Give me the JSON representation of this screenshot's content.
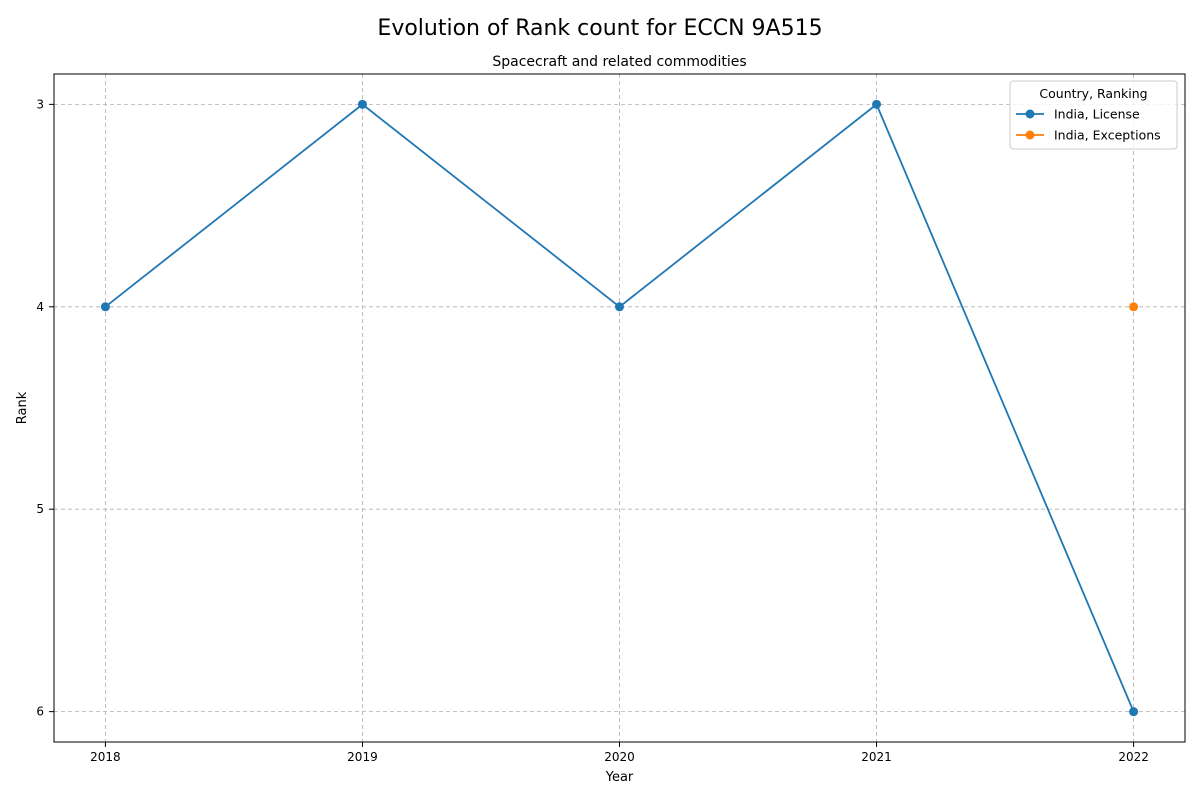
{
  "chart_data": {
    "type": "line",
    "suptitle": "Evolution of Rank count for ECCN 9A515",
    "title": "Spacecraft and related commodities",
    "xlabel": "Year",
    "ylabel": "Rank",
    "x": [
      2018,
      2019,
      2020,
      2021,
      2022
    ],
    "xticks": [
      "2018",
      "2019",
      "2020",
      "2021",
      "2022"
    ],
    "yticks": [
      "3",
      "4",
      "5",
      "6"
    ],
    "xlim": [
      2017.8,
      2022.2
    ],
    "ylim": [
      6.15,
      2.85
    ],
    "y_inverted": true,
    "grid": true,
    "grid_style": "dashed",
    "legend": {
      "title": "Country, Ranking",
      "placement": "top-right"
    },
    "series": [
      {
        "name": "India, License",
        "color": "#1f77b4",
        "marker": "circle",
        "points": [
          [
            2018,
            4
          ],
          [
            2019,
            3
          ],
          [
            2020,
            4
          ],
          [
            2021,
            3
          ],
          [
            2022,
            6
          ]
        ]
      },
      {
        "name": "India, Exceptions",
        "color": "#ff7f0e",
        "marker": "circle",
        "points": [
          [
            2022,
            4
          ]
        ]
      }
    ]
  }
}
